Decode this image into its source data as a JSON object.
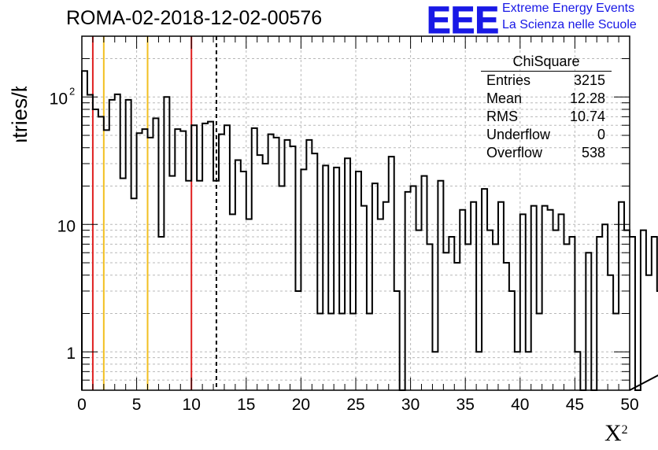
{
  "title": "ROMA-02-2018-12-02-00576",
  "logo": {
    "text": "EEE",
    "line1": "Extreme Energy Events",
    "line2": "La Scienza nelle Scuole",
    "color": "#1818e6"
  },
  "stats": {
    "title": "ChiSquare",
    "rows": [
      {
        "label": "Entries",
        "value": "3215"
      },
      {
        "label": "Mean",
        "value": "12.28"
      },
      {
        "label": "RMS",
        "value": "10.74"
      },
      {
        "label": "Underflow",
        "value": "0"
      },
      {
        "label": "Overflow",
        "value": "538"
      }
    ]
  },
  "chart_data": {
    "type": "histogram",
    "title": "ROMA-02-2018-12-02-00576",
    "xlabel": "X",
    "xlabel_sup": "2",
    "ylabel": "Entries/bin",
    "xlim": [
      0,
      50
    ],
    "ylim": [
      0.5,
      300
    ],
    "yscale": "log",
    "grid": true,
    "bin_width": 0.5,
    "x_ticks": [
      "0",
      "5",
      "10",
      "15",
      "20",
      "25",
      "30",
      "35",
      "40",
      "45",
      "50"
    ],
    "y_ticks": [
      {
        "value": 1,
        "label": "1"
      },
      {
        "value": 10,
        "label": "10"
      },
      {
        "value": 100,
        "label": "10",
        "sup": "2"
      }
    ],
    "values": [
      160,
      104,
      80,
      70,
      55,
      95,
      105,
      23,
      95,
      16,
      52,
      56,
      48,
      68,
      8,
      100,
      24,
      56,
      54,
      22,
      60,
      22,
      62,
      64,
      22,
      51,
      60,
      12,
      32,
      26,
      11,
      57,
      35,
      30,
      51,
      48,
      20,
      46,
      41,
      3,
      27,
      46,
      36,
      2,
      29,
      2,
      28,
      2,
      33,
      2,
      26,
      14,
      2,
      21,
      11,
      15,
      34,
      3,
      0,
      18,
      20,
      9,
      24,
      7,
      1,
      22,
      6,
      8,
      5,
      13,
      7,
      15,
      1,
      19,
      9,
      7,
      15,
      5,
      3,
      1,
      12,
      1,
      14,
      2,
      14,
      13,
      9,
      12,
      7,
      8,
      1,
      0,
      6,
      0,
      8,
      10,
      4,
      2,
      15,
      9,
      8,
      0,
      9,
      4,
      8,
      3,
      1,
      9,
      4,
      1,
      13,
      9,
      1,
      4,
      1,
      9,
      8,
      6,
      3,
      8,
      1,
      5,
      4,
      15,
      5,
      10,
      4,
      5,
      5,
      6,
      5,
      4,
      4,
      3,
      1,
      4,
      4,
      5,
      6,
      4
    ],
    "vertical_lines": [
      {
        "x": 1,
        "color": "#e02020",
        "style": "solid"
      },
      {
        "x": 2,
        "color": "#f2c021",
        "style": "solid"
      },
      {
        "x": 6,
        "color": "#f2c021",
        "style": "solid"
      },
      {
        "x": 10,
        "color": "#e02020",
        "style": "solid"
      },
      {
        "x": 12.28,
        "color": "#000000",
        "style": "dashed"
      }
    ]
  }
}
